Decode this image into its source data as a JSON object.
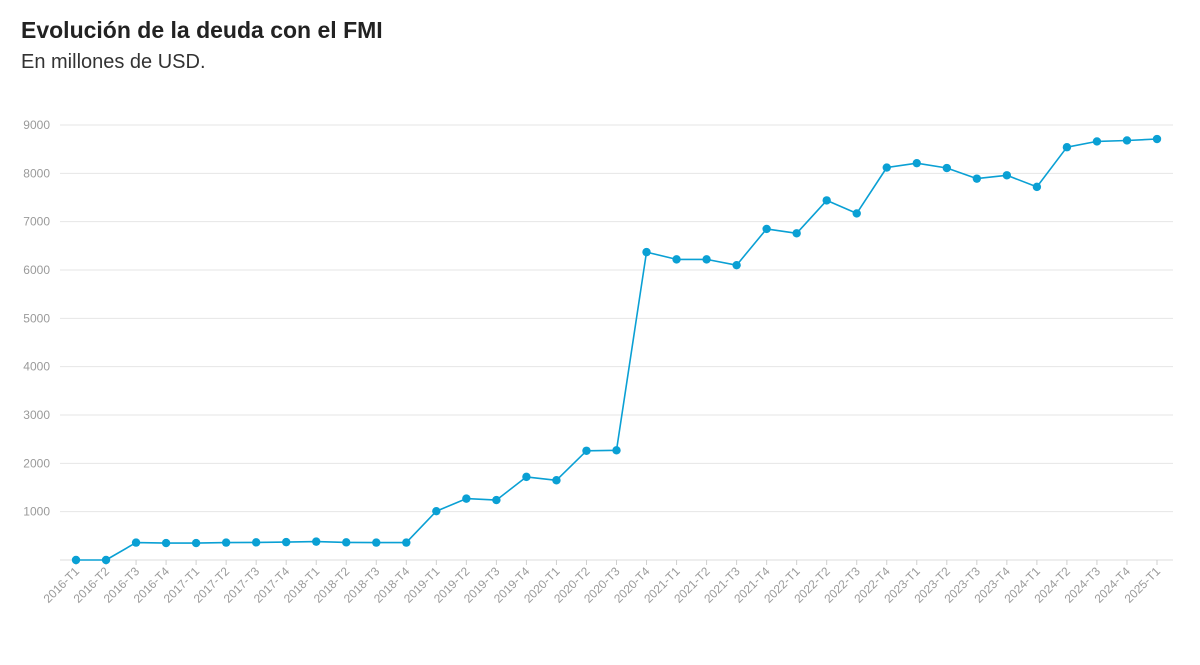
{
  "header": {
    "title": "Evolución de la deuda con el FMI",
    "subtitle": "En millones de USD."
  },
  "colors": {
    "line": "#0aa0d4",
    "grid": "#e6e6e6",
    "tick_text": "#9a9a9a"
  },
  "chart_data": {
    "type": "line",
    "title": "Evolución de la deuda con el FMI",
    "subtitle": "En millones de USD.",
    "xlabel": "",
    "ylabel": "",
    "ylim": [
      0,
      9000
    ],
    "yticks": [
      1000,
      2000,
      3000,
      4000,
      5000,
      6000,
      7000,
      8000,
      9000
    ],
    "grid": true,
    "legend": "none",
    "categories": [
      "2016-T1",
      "2016-T2",
      "2016-T3",
      "2016-T4",
      "2017-T1",
      "2017-T2",
      "2017-T3",
      "2017-T4",
      "2018-T1",
      "2018-T2",
      "2018-T3",
      "2018-T4",
      "2019-T1",
      "2019-T2",
      "2019-T3",
      "2019-T4",
      "2020-T1",
      "2020-T2",
      "2020-T3",
      "2020-T4",
      "2021-T1",
      "2021-T2",
      "2021-T3",
      "2021-T4",
      "2022-T1",
      "2022-T2",
      "2022-T3",
      "2022-T4",
      "2023-T1",
      "2023-T2",
      "2023-T3",
      "2023-T4",
      "2024-T1",
      "2024-T2",
      "2024-T3",
      "2024-T4",
      "2025-T1"
    ],
    "series": [
      {
        "values": [
          0,
          0,
          360,
          350,
          350,
          360,
          365,
          370,
          380,
          365,
          360,
          360,
          1010,
          1270,
          1240,
          1720,
          1650,
          2260,
          2270,
          6370,
          6220,
          6220,
          6100,
          6850,
          6760,
          7440,
          7170,
          8120,
          8210,
          8110,
          7890,
          7960,
          7720,
          8540,
          8660,
          8680,
          8710
        ]
      }
    ]
  }
}
